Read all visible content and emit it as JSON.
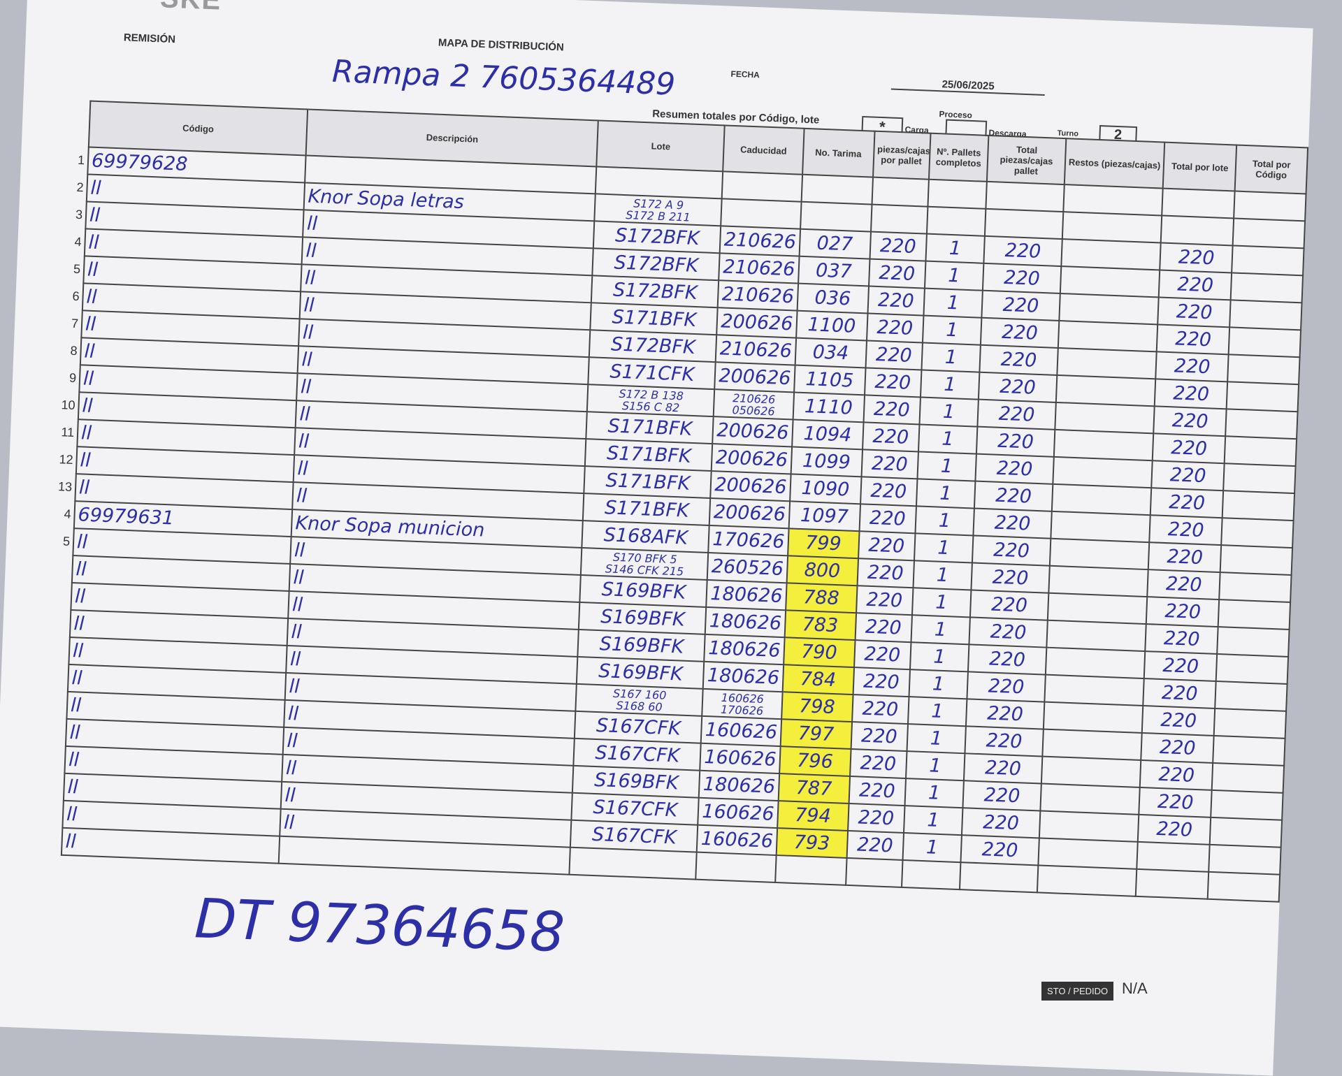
{
  "header": {
    "logo": "SKE",
    "remision": "REMISIÓN",
    "title": "MAPA DE DISTRIBUCIÓN",
    "remision_value": "Rampa 2  7605364489",
    "fecha_label": "FECHA",
    "fecha": "25/06/2025",
    "proceso_label": "Proceso",
    "carga_mark": "*",
    "carga": "Carga",
    "descarga": "Descarga",
    "turno_label": "Turno",
    "turno": "2",
    "resumen": "Resumen totales por Código, lote"
  },
  "table": {
    "columns": [
      "Código",
      "Descripción",
      "Lote",
      "Caducidad",
      "No. Tarima",
      "piezas/cajas por pallet",
      "Nº. Pallets completos",
      "Total piezas/cajas pallet",
      "Restos (piezas/cajas)",
      "Total por lote",
      "Total por Código"
    ],
    "highlight_color": "#f4ee3c",
    "rows": [
      {
        "n": "1",
        "code": "69979628"
      },
      {
        "n": "2",
        "code": "ll",
        "desc": "Knor Sopa letras",
        "lote": [
          "S172 A 9",
          "S172 B 211"
        ]
      },
      {
        "n": "3",
        "code": "ll",
        "desc": "ll",
        "lote": [
          "S172BFK"
        ],
        "cad": [
          "210626"
        ],
        "tarima": "027",
        "piezas": "220",
        "pallets": "1",
        "total": "220",
        "total_lote": "220"
      },
      {
        "n": "4",
        "code": "ll",
        "desc": "ll",
        "lote": [
          "S172BFK"
        ],
        "cad": [
          "210626"
        ],
        "tarima": "037",
        "piezas": "220",
        "pallets": "1",
        "total": "220",
        "total_lote": "220"
      },
      {
        "n": "5",
        "code": "ll",
        "desc": "ll",
        "lote": [
          "S172BFK"
        ],
        "cad": [
          "210626"
        ],
        "tarima": "036",
        "piezas": "220",
        "pallets": "1",
        "total": "220",
        "total_lote": "220"
      },
      {
        "n": "6",
        "code": "ll",
        "desc": "ll",
        "lote": [
          "S171BFK"
        ],
        "cad": [
          "200626"
        ],
        "tarima": "1100",
        "piezas": "220",
        "pallets": "1",
        "total": "220",
        "total_lote": "220"
      },
      {
        "n": "7",
        "code": "ll",
        "desc": "ll",
        "lote": [
          "S172BFK"
        ],
        "cad": [
          "210626"
        ],
        "tarima": "034",
        "piezas": "220",
        "pallets": "1",
        "total": "220",
        "total_lote": "220"
      },
      {
        "n": "8",
        "code": "ll",
        "desc": "ll",
        "lote": [
          "S171CFK"
        ],
        "cad": [
          "200626"
        ],
        "tarima": "1105",
        "piezas": "220",
        "pallets": "1",
        "total": "220",
        "total_lote": "220"
      },
      {
        "n": "9",
        "code": "ll",
        "desc": "ll",
        "lote": [
          "S172 B 138",
          "S156 C 82"
        ],
        "cad": [
          "210626",
          "050626"
        ],
        "tarima": "1110",
        "piezas": "220",
        "pallets": "1",
        "total": "220",
        "total_lote": "220"
      },
      {
        "n": "10",
        "code": "ll",
        "desc": "ll",
        "lote": [
          "S171BFK"
        ],
        "cad": [
          "200626"
        ],
        "tarima": "1094",
        "piezas": "220",
        "pallets": "1",
        "total": "220",
        "total_lote": "220"
      },
      {
        "n": "11",
        "code": "ll",
        "desc": "ll",
        "lote": [
          "S171BFK"
        ],
        "cad": [
          "200626"
        ],
        "tarima": "1099",
        "piezas": "220",
        "pallets": "1",
        "total": "220",
        "total_lote": "220"
      },
      {
        "n": "12",
        "code": "ll",
        "desc": "ll",
        "lote": [
          "S171BFK"
        ],
        "cad": [
          "200626"
        ],
        "tarima": "1090",
        "piezas": "220",
        "pallets": "1",
        "total": "220",
        "total_lote": "220"
      },
      {
        "n": "13",
        "code": "ll",
        "desc": "ll",
        "lote": [
          "S171BFK"
        ],
        "cad": [
          "200626"
        ],
        "tarima": "1097",
        "piezas": "220",
        "pallets": "1",
        "total": "220",
        "total_lote": "220"
      },
      {
        "n": "4",
        "code": "69979631",
        "desc": "Knor Sopa municion",
        "lote": [
          "S168AFK"
        ],
        "cad": [
          "170626"
        ],
        "tarima": "799",
        "highlight": true,
        "piezas": "220",
        "pallets": "1",
        "total": "220",
        "total_lote": "220"
      },
      {
        "n": "5",
        "code": "ll",
        "desc": "ll",
        "lote": [
          "S170 BFK 5",
          "S146 CFK 215"
        ],
        "cad": [
          "260526"
        ],
        "tarima": "800",
        "highlight": true,
        "piezas": "220",
        "pallets": "1",
        "total": "220",
        "total_lote": "220"
      },
      {
        "code": "ll",
        "desc": "ll",
        "lote": [
          "S169BFK"
        ],
        "cad": [
          "180626"
        ],
        "tarima": "788",
        "highlight": true,
        "piezas": "220",
        "pallets": "1",
        "total": "220",
        "total_lote": "220"
      },
      {
        "code": "ll",
        "desc": "ll",
        "lote": [
          "S169BFK"
        ],
        "cad": [
          "180626"
        ],
        "tarima": "783",
        "highlight": true,
        "piezas": "220",
        "pallets": "1",
        "total": "220",
        "total_lote": "220"
      },
      {
        "code": "ll",
        "desc": "ll",
        "lote": [
          "S169BFK"
        ],
        "cad": [
          "180626"
        ],
        "tarima": "790",
        "highlight": true,
        "piezas": "220",
        "pallets": "1",
        "total": "220",
        "total_lote": "220"
      },
      {
        "code": "ll",
        "desc": "ll",
        "lote": [
          "S169BFK"
        ],
        "cad": [
          "180626"
        ],
        "tarima": "784",
        "highlight": true,
        "piezas": "220",
        "pallets": "1",
        "total": "220",
        "total_lote": "220"
      },
      {
        "code": "ll",
        "desc": "ll",
        "lote": [
          "S167 160",
          "S168 60"
        ],
        "cad": [
          "160626",
          "170626"
        ],
        "tarima": "798",
        "highlight": true,
        "piezas": "220",
        "pallets": "1",
        "total": "220",
        "total_lote": "220"
      },
      {
        "code": "ll",
        "desc": "ll",
        "lote": [
          "S167CFK"
        ],
        "cad": [
          "160626"
        ],
        "tarima": "797",
        "highlight": true,
        "piezas": "220",
        "pallets": "1",
        "total": "220",
        "total_lote": "220"
      },
      {
        "code": "ll",
        "desc": "ll",
        "lote": [
          "S167CFK"
        ],
        "cad": [
          "160626"
        ],
        "tarima": "796",
        "highlight": true,
        "piezas": "220",
        "pallets": "1",
        "total": "220",
        "total_lote": "220"
      },
      {
        "code": "ll",
        "desc": "ll",
        "lote": [
          "S169BFK"
        ],
        "cad": [
          "180626"
        ],
        "tarima": "787",
        "highlight": true,
        "piezas": "220",
        "pallets": "1",
        "total": "220",
        "total_lote": "220"
      },
      {
        "code": "ll",
        "desc": "ll",
        "lote": [
          "S167CFK"
        ],
        "cad": [
          "160626"
        ],
        "tarima": "794",
        "highlight": true,
        "piezas": "220",
        "pallets": "1",
        "total": "220",
        "total_lote": "220"
      },
      {
        "code": "ll",
        "desc": "ll",
        "lote": [
          "S167CFK"
        ],
        "cad": [
          "160626"
        ],
        "tarima": "793",
        "highlight": true,
        "piezas": "220",
        "pallets": "1",
        "total": "220"
      },
      {
        "code": "ll"
      }
    ]
  },
  "footer": {
    "note": "DT 97364658",
    "pedido_label": "STO / PEDIDO",
    "pedido": "N/A"
  }
}
